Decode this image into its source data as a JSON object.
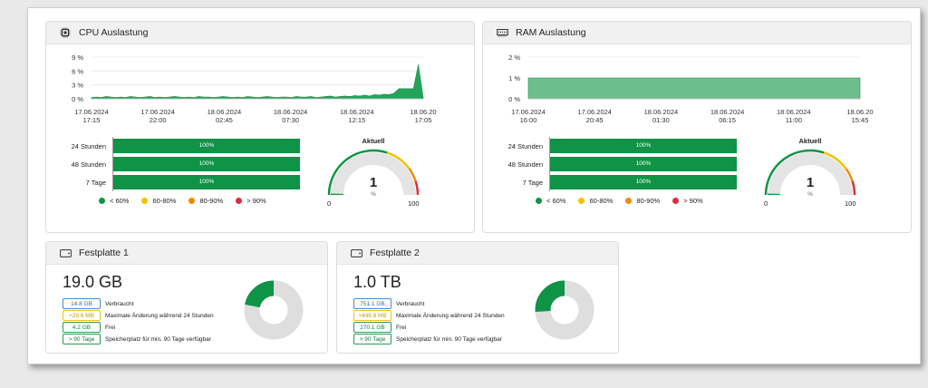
{
  "cpu": {
    "title": "CPU Auslastung",
    "icon": "cpu-icon",
    "chart_data": {
      "type": "area",
      "y_ticks": [
        "9 %",
        "6 %",
        "3 %",
        "0 %"
      ],
      "ylim": [
        0,
        9
      ],
      "x_ticks": [
        [
          "17.06.2024",
          "17:15"
        ],
        [
          "17.06.2024",
          "22:00"
        ],
        [
          "18.06.2024",
          "02:45"
        ],
        [
          "18.06.2024",
          "07:30"
        ],
        [
          "18.06.2024",
          "12:15"
        ],
        [
          "18.06.2024",
          "17:05"
        ]
      ],
      "x_tick_labels_display": [
        [
          "17.06.2024",
          "17:15"
        ],
        [
          "17.06.2024",
          "22:00"
        ],
        [
          "18.06.2024",
          "02:45"
        ],
        [
          "18.06.2024",
          "07:30"
        ],
        [
          "18.06.2024",
          "12:15"
        ],
        [
          "18.06.20",
          "17:05"
        ]
      ],
      "values": [
        0.3,
        0.4,
        0.3,
        0.5,
        0.4,
        0.3,
        0.4,
        0.3,
        0.5,
        0.4,
        0.3,
        0.4,
        0.5,
        0.3,
        0.4,
        0.3,
        0.4,
        0.5,
        0.4,
        0.3,
        0.4,
        0.3,
        0.5,
        0.4,
        0.4,
        0.3,
        0.4,
        0.5,
        0.4,
        0.3,
        0.4,
        0.3,
        0.5,
        0.4,
        0.3,
        0.4,
        0.5,
        0.4,
        0.3,
        0.4,
        0.4,
        0.3,
        0.5,
        0.4,
        0.4,
        0.5,
        0.3,
        0.4,
        0.5,
        0.6,
        0.4,
        0.5,
        0.6,
        0.5,
        0.7,
        0.6,
        0.8,
        0.6,
        0.9,
        0.8,
        1.0,
        0.9,
        1.2,
        2.2,
        2.2,
        2.2,
        2.2,
        7.4,
        0.3
      ],
      "color": "#22a45a"
    },
    "bars": [
      {
        "label": "24 Stunden",
        "value": "100%",
        "fraction": 1.0
      },
      {
        "label": "48 Stunden",
        "value": "100%",
        "fraction": 1.0
      },
      {
        "label": "7 Tage",
        "value": "100%",
        "fraction": 1.0
      }
    ],
    "gauge": {
      "title": "Aktuell",
      "value": "1",
      "unit": "%",
      "min": "0",
      "max": "100",
      "level": 0.01
    }
  },
  "ram": {
    "title": "RAM Auslastung",
    "icon": "memory-icon",
    "chart_data": {
      "type": "area",
      "y_ticks": [
        "2 %",
        "1 %",
        "0 %"
      ],
      "ylim": [
        0,
        2
      ],
      "x_ticks": [
        [
          "17.06.2024",
          "16:00"
        ],
        [
          "17.06.2024",
          "20:45"
        ],
        [
          "18.06.2024",
          "01:30"
        ],
        [
          "18.06.2024",
          "06:15"
        ],
        [
          "18.06.2024",
          "11:00"
        ],
        [
          "18.06.2024",
          "15:45"
        ]
      ],
      "x_tick_labels_display": [
        [
          "17.06.2024",
          "16:00"
        ],
        [
          "17.06.2024",
          "20:45"
        ],
        [
          "18.06.2024",
          "01:30"
        ],
        [
          "18.06.2024",
          "06:15"
        ],
        [
          "18.06.2024",
          "11:00"
        ],
        [
          "18.06.20",
          "15:45"
        ]
      ],
      "values": [
        1,
        1
      ],
      "color": "#6cbf8c"
    },
    "bars": [
      {
        "label": "24 Stunden",
        "value": "100%",
        "fraction": 1.0
      },
      {
        "label": "48 Stunden",
        "value": "100%",
        "fraction": 1.0
      },
      {
        "label": "7 Tage",
        "value": "100%",
        "fraction": 1.0
      }
    ],
    "gauge": {
      "title": "Aktuell",
      "value": "1",
      "unit": "%",
      "min": "0",
      "max": "100",
      "level": 0.01
    }
  },
  "legend": [
    {
      "label": "< 60%",
      "color": "#0f9347"
    },
    {
      "label": "60-80%",
      "color": "#f2c200"
    },
    {
      "label": "80-90%",
      "color": "#f08a00"
    },
    {
      "label": "> 90%",
      "color": "#d9303e"
    }
  ],
  "disks": [
    {
      "title": "Festplatte 1",
      "icon": "hard-drive-icon",
      "total": "19.0 GB",
      "used": "14.8 GB",
      "used_label": "Verbraucht",
      "change": "+29.6 MB",
      "change_label": "Maximale Änderung während 24 Stunden",
      "free": "4.2 GB",
      "free_label": "Frei",
      "forecast": "> 90 Tage",
      "forecast_label": "Speicherplatz für min. 90 Tage verfügbar",
      "free_fraction": 0.22
    },
    {
      "title": "Festplatte 2",
      "icon": "hard-drive-icon",
      "total": "1.0 TB",
      "used": "751.1 GB",
      "used_label": "Verbraucht",
      "change": "+448.8 MB",
      "change_label": "Maximale Änderung während 24 Stunden",
      "free": "270.1 GB",
      "free_label": "Frei",
      "forecast": "> 90 Tage",
      "forecast_label": "Speicherplatz für min. 90 Tage verfügbar",
      "free_fraction": 0.26
    }
  ]
}
